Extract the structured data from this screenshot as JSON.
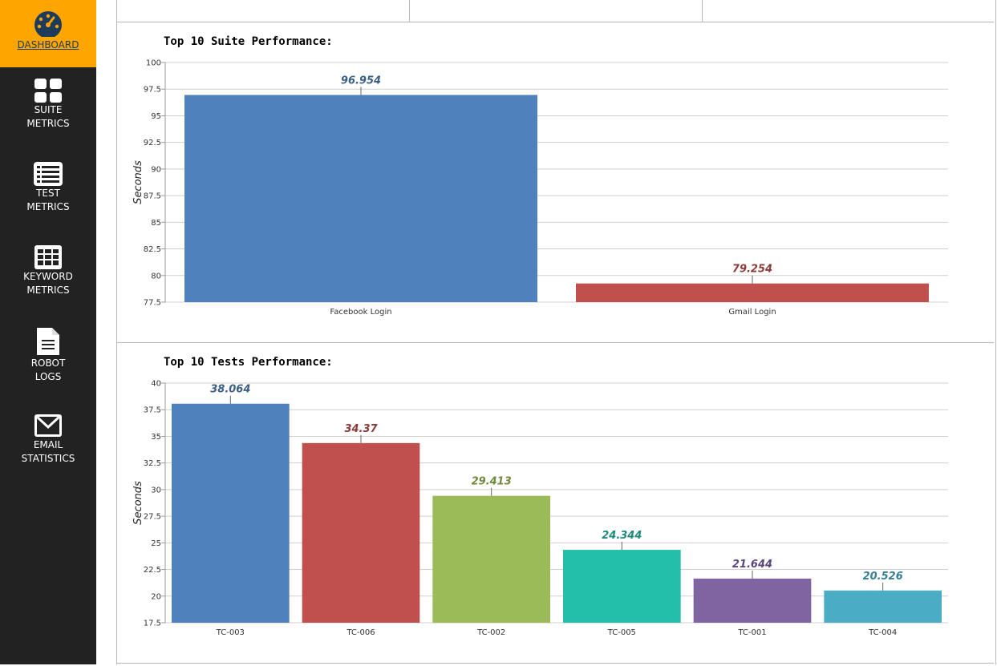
{
  "sidebar": {
    "items": [
      {
        "label": "DASHBOARD",
        "icon": "gauge-icon"
      },
      {
        "label": "SUITE\nMETRICS",
        "icon": "grid-icon"
      },
      {
        "label": "TEST\nMETRICS",
        "icon": "list-icon"
      },
      {
        "label": "KEYWORD\nMETRICS",
        "icon": "table-icon"
      },
      {
        "label": "ROBOT\nLOGS",
        "icon": "document-icon"
      },
      {
        "label": "EMAIL\nSTATISTICS",
        "icon": "envelope-icon"
      }
    ],
    "accent": "#ffa500",
    "background": "#222222"
  },
  "chart_data": [
    {
      "type": "bar",
      "title": "Top 10 Suite Performance:",
      "ylabel": "Seconds",
      "xlabel": "",
      "ylim": [
        77.5,
        100
      ],
      "yticks": [
        "100",
        "97.5",
        "95",
        "92.5",
        "90",
        "87.5",
        "85",
        "82.5",
        "80",
        "77.5"
      ],
      "grid": true,
      "categories": [
        "Facebook Login",
        "Gmail Login"
      ],
      "values": [
        96.954,
        79.254
      ],
      "labels": [
        "96.954",
        "79.254"
      ],
      "colors": [
        "#4f81bd",
        "#c0504d"
      ],
      "label_colors": [
        "#3b5f86",
        "#8b3a38"
      ]
    },
    {
      "type": "bar",
      "title": "Top 10 Tests Performance:",
      "ylabel": "Seconds",
      "xlabel": "",
      "ylim": [
        17.5,
        40
      ],
      "yticks": [
        "40",
        "37.5",
        "35",
        "32.5",
        "30",
        "27.5",
        "25",
        "22.5",
        "20",
        "17.5"
      ],
      "grid": true,
      "categories": [
        "TC-003",
        "TC-006",
        "TC-002",
        "TC-005",
        "TC-001",
        "TC-004"
      ],
      "values": [
        38.064,
        34.37,
        29.413,
        24.344,
        21.644,
        20.526
      ],
      "labels": [
        "38.064",
        "34.37",
        "29.413",
        "24.344",
        "21.644",
        "20.526"
      ],
      "colors": [
        "#4f81bd",
        "#c0504d",
        "#9bbb59",
        "#23bfaa",
        "#8064a2",
        "#4bacc6"
      ],
      "label_colors": [
        "#3b5f86",
        "#8b3a38",
        "#6f8a3a",
        "#1f8a7c",
        "#5c477a",
        "#347f93"
      ]
    }
  ]
}
